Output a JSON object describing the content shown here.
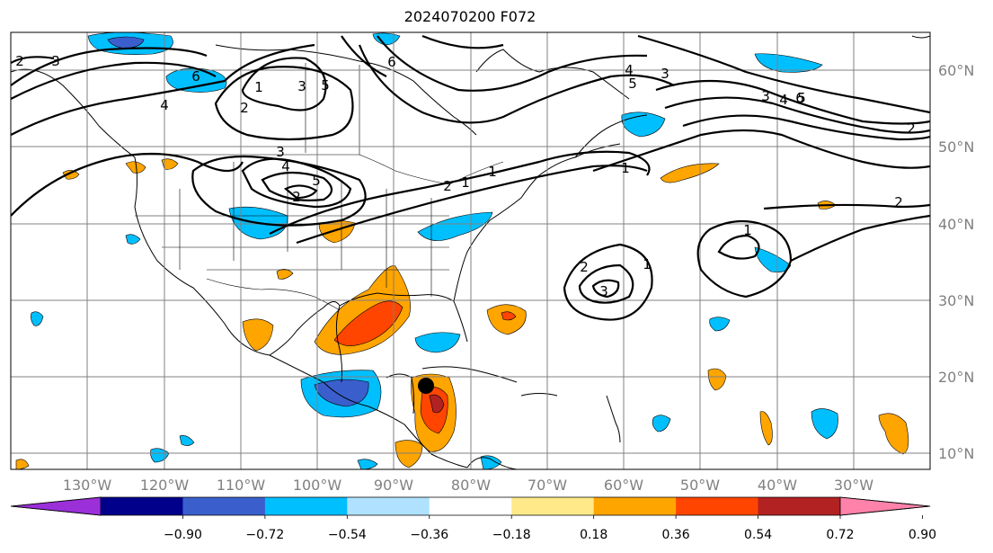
{
  "title": "2024070200 F072",
  "map": {
    "lon_labels": [
      "130°W",
      "120°W",
      "110°W",
      "100°W",
      "90°W",
      "80°W",
      "70°W",
      "60°W",
      "50°W",
      "40°W",
      "30°W"
    ],
    "lat_labels": [
      "60°N",
      "50°N",
      "40°N",
      "30°N",
      "20°N",
      "10°N"
    ],
    "contour_labels": [
      "2",
      "3",
      "4",
      "6",
      "1",
      "2",
      "3",
      "4",
      "5",
      "2",
      "3",
      "1",
      "1",
      "3",
      "4",
      "5",
      "6",
      "3",
      "4",
      "5",
      "6",
      "2",
      "2",
      "1",
      "2",
      "3",
      "1",
      "5",
      "2",
      "1"
    ],
    "marker": "storm-center",
    "colors": {
      "coast": "#000000",
      "grid": "#808080",
      "contour": "#000000"
    }
  },
  "colorbar": {
    "ticks": [
      "−0.90",
      "−0.72",
      "−0.54",
      "−0.36",
      "−0.18",
      "0.18",
      "0.36",
      "0.54",
      "0.72",
      "0.90"
    ],
    "colors": [
      "#9b30d9",
      "#00008b",
      "#3a5fcd",
      "#00bfff",
      "#b0e2ff",
      "#ffffff",
      "#ffe989",
      "#ffa500",
      "#ff4500",
      "#b22222",
      "#ff82ab"
    ]
  }
}
